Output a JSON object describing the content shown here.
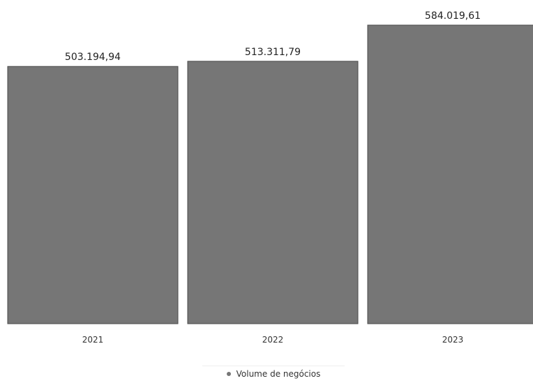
{
  "chart_data": {
    "type": "bar",
    "categories": [
      "2021",
      "2022",
      "2023"
    ],
    "series": [
      {
        "name": "Volume de negócios",
        "values": [
          503194.94,
          513311.79,
          584019.61
        ],
        "labels": [
          "503.194,94",
          "513.311,79",
          "584.019,61"
        ]
      }
    ],
    "ylim": [
      0,
      584019.61
    ],
    "grid": false,
    "legend_position": "bottom-center",
    "colors": {
      "bar": "#767676",
      "bar_border": "#4a4a4a",
      "legend_marker": "#767676"
    }
  }
}
